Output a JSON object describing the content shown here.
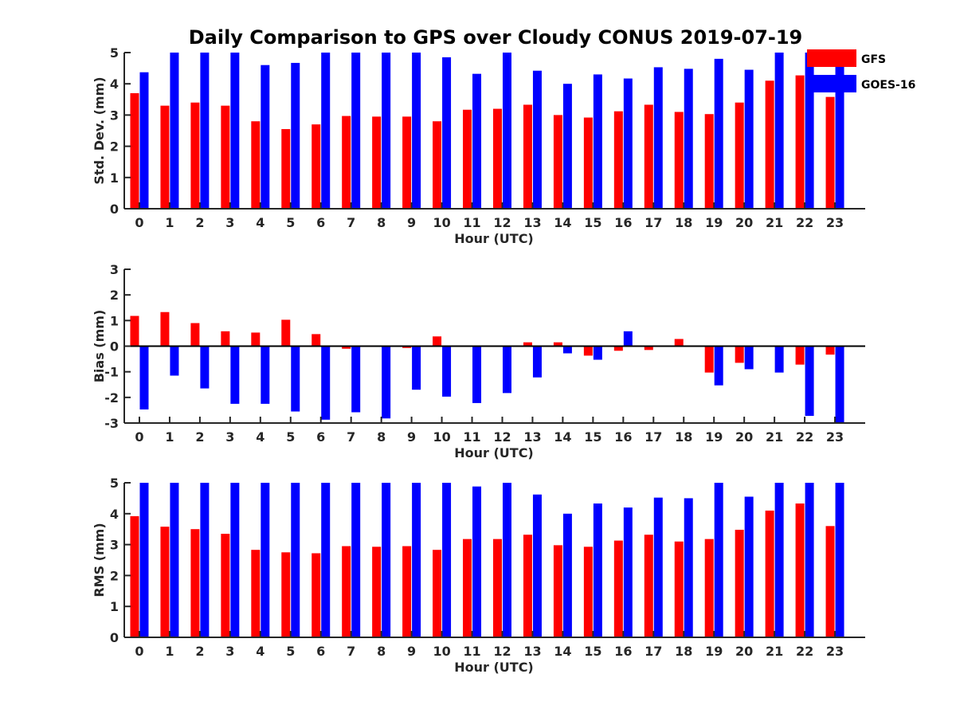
{
  "chart_data": {
    "title": "Daily Comparison to GPS over Cloudy CONUS 2019-07-19",
    "legend": {
      "placement": "top-right",
      "entries": [
        {
          "name": "GFS",
          "color": "#ff0000"
        },
        {
          "name": "GOES-16",
          "color": "#0000ff"
        }
      ]
    },
    "panels": [
      {
        "type": "bar",
        "xlabel": "Hour (UTC)",
        "ylabel": "Std. Dev. (mm)",
        "ylim": [
          0,
          5
        ],
        "yticks": [
          0,
          1,
          2,
          3,
          4,
          5
        ],
        "categories": [
          "0",
          "1",
          "2",
          "3",
          "4",
          "5",
          "6",
          "7",
          "8",
          "9",
          "10",
          "11",
          "12",
          "13",
          "14",
          "15",
          "16",
          "17",
          "18",
          "19",
          "20",
          "21",
          "22",
          "23"
        ],
        "series": [
          {
            "name": "GFS",
            "color": "#ff0000",
            "values": [
              3.7,
              3.3,
              3.4,
              3.3,
              2.8,
              2.55,
              2.7,
              2.97,
              2.95,
              2.95,
              2.8,
              3.17,
              3.2,
              3.33,
              3.0,
              2.92,
              3.12,
              3.33,
              3.1,
              3.03,
              3.4,
              4.1,
              4.27,
              3.58
            ]
          },
          {
            "name": "GOES-16",
            "color": "#0000ff",
            "values": [
              4.37,
              5.0,
              5.0,
              5.0,
              4.6,
              4.67,
              5.0,
              5.0,
              5.0,
              5.0,
              4.85,
              4.32,
              5.0,
              4.42,
              4.0,
              4.3,
              4.17,
              4.53,
              4.48,
              4.8,
              4.45,
              5.0,
              5.0,
              4.6
            ]
          }
        ]
      },
      {
        "type": "bar",
        "xlabel": "Hour (UTC)",
        "ylabel": "Bias (mm)",
        "ylim": [
          -3,
          3
        ],
        "yticks": [
          -3,
          -2,
          -1,
          0,
          1,
          2,
          3
        ],
        "zero_line": true,
        "categories": [
          "0",
          "1",
          "2",
          "3",
          "4",
          "5",
          "6",
          "7",
          "8",
          "9",
          "10",
          "11",
          "12",
          "13",
          "14",
          "15",
          "16",
          "17",
          "18",
          "19",
          "20",
          "21",
          "22",
          "23"
        ],
        "series": [
          {
            "name": "GFS",
            "color": "#ff0000",
            "values": [
              1.18,
              1.33,
              0.9,
              0.58,
              0.53,
              1.03,
              0.47,
              -0.1,
              -0.03,
              -0.07,
              0.38,
              0.0,
              0.0,
              0.15,
              0.15,
              -0.37,
              -0.18,
              -0.15,
              0.28,
              -1.03,
              -0.65,
              0.0,
              -0.72,
              -0.33
            ]
          },
          {
            "name": "GOES-16",
            "color": "#0000ff",
            "values": [
              -2.47,
              -1.15,
              -1.65,
              -2.25,
              -2.25,
              -2.55,
              -2.87,
              -2.58,
              -2.82,
              -1.7,
              -1.97,
              -2.22,
              -1.83,
              -1.22,
              -0.28,
              -0.53,
              0.58,
              0.03,
              0.0,
              -1.53,
              -0.9,
              -1.03,
              -2.72,
              -3.0
            ]
          }
        ]
      },
      {
        "type": "bar",
        "xlabel": "Hour (UTC)",
        "ylabel": "RMS (mm)",
        "ylim": [
          0,
          5
        ],
        "yticks": [
          0,
          1,
          2,
          3,
          4,
          5
        ],
        "categories": [
          "0",
          "1",
          "2",
          "3",
          "4",
          "5",
          "6",
          "7",
          "8",
          "9",
          "10",
          "11",
          "12",
          "13",
          "14",
          "15",
          "16",
          "17",
          "18",
          "19",
          "20",
          "21",
          "22",
          "23"
        ],
        "series": [
          {
            "name": "GFS",
            "color": "#ff0000",
            "values": [
              3.92,
              3.58,
              3.5,
              3.35,
              2.83,
              2.75,
              2.72,
              2.95,
              2.93,
              2.95,
              2.83,
              3.18,
              3.18,
              3.32,
              2.98,
              2.93,
              3.13,
              3.32,
              3.1,
              3.18,
              3.48,
              4.1,
              4.33,
              3.6
            ]
          },
          {
            "name": "GOES-16",
            "color": "#0000ff",
            "values": [
              5.0,
              5.0,
              5.0,
              5.0,
              5.0,
              5.0,
              5.0,
              5.0,
              5.0,
              5.0,
              5.0,
              4.88,
              5.0,
              4.62,
              4.0,
              4.33,
              4.2,
              4.52,
              4.5,
              5.0,
              4.55,
              5.0,
              5.0,
              5.0
            ]
          }
        ]
      }
    ]
  }
}
